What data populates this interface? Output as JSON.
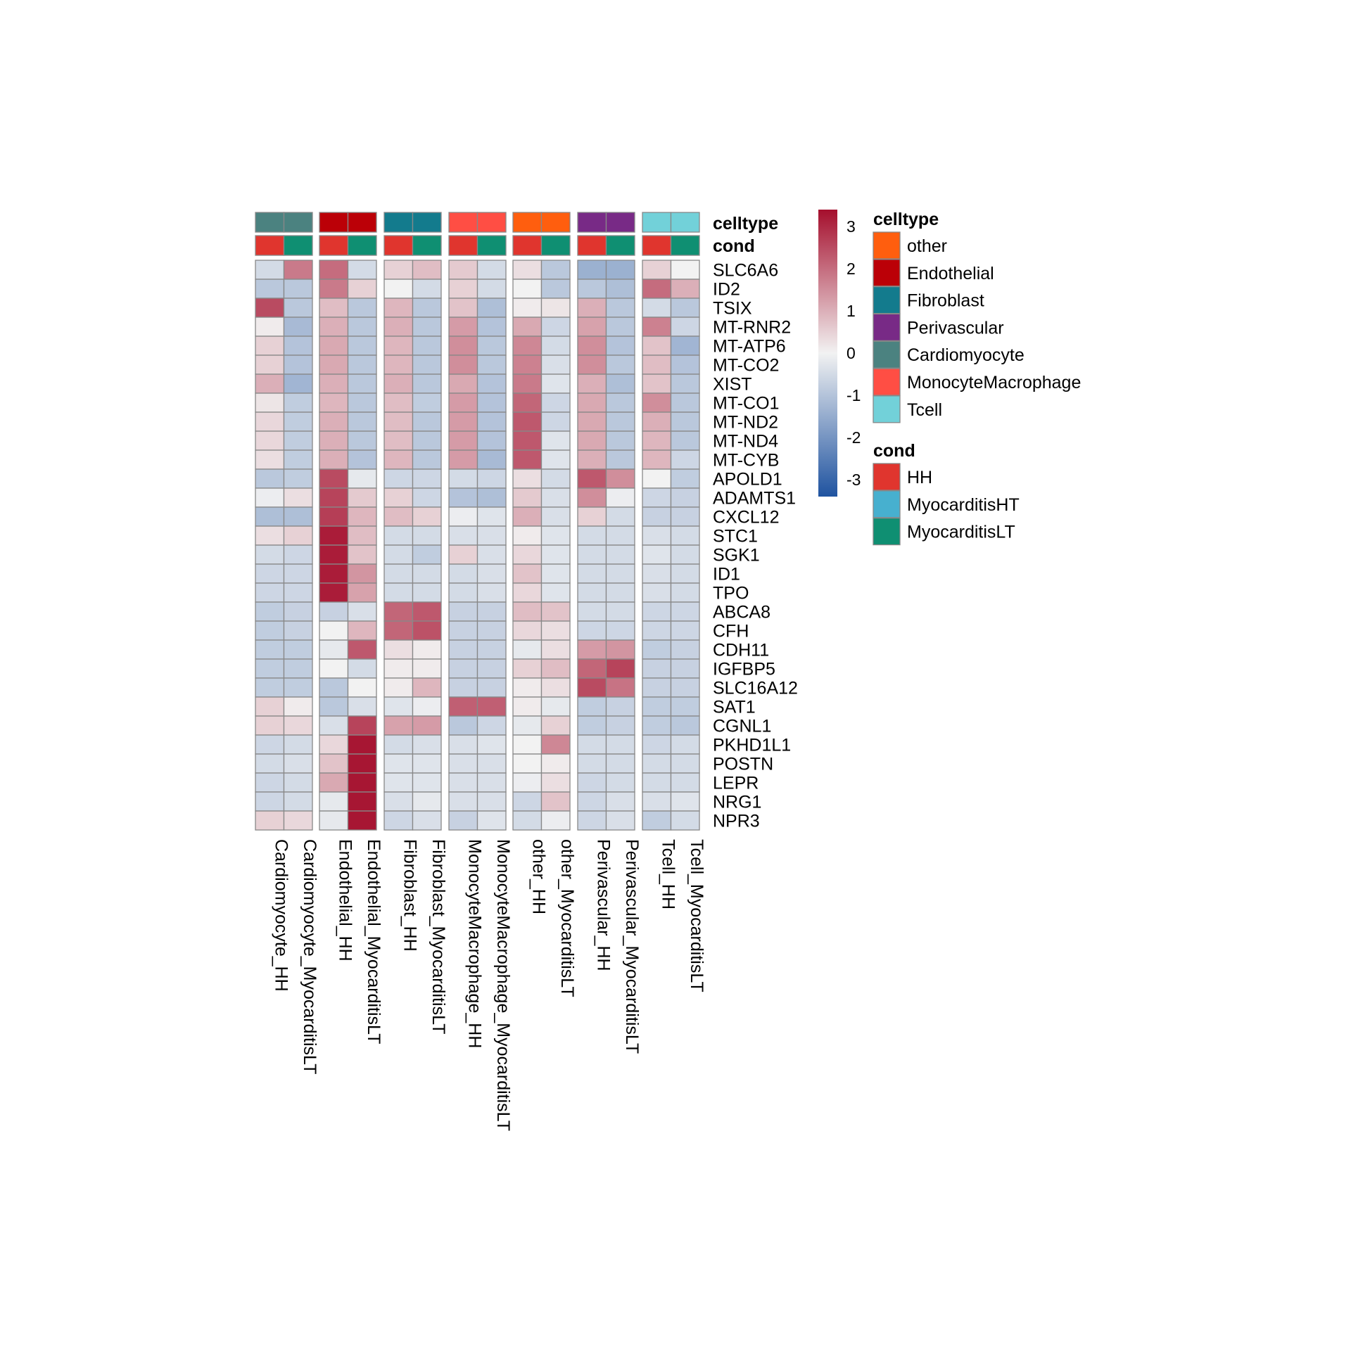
{
  "chart_data": {
    "type": "heatmap",
    "rows": [
      "SLC6A6",
      "ID2",
      "TSIX",
      "MT-RNR2",
      "MT-ATP6",
      "MT-CO2",
      "XIST",
      "MT-CO1",
      "MT-ND2",
      "MT-ND4",
      "MT-CYB",
      "APOLD1",
      "ADAMTS1",
      "CXCL12",
      "STC1",
      "SGK1",
      "ID1",
      "TPO",
      "ABCA8",
      "CFH",
      "CDH11",
      "IGFBP5",
      "SLC16A12",
      "SAT1",
      "CGNL1",
      "PKHD1L1",
      "POSTN",
      "LEPR",
      "NRG1",
      "NPR3"
    ],
    "columns": [
      {
        "label": "Cardiomyocyte_HH",
        "celltype": "Cardiomyocyte",
        "cond": "HH"
      },
      {
        "label": "Cardiomyocyte_MyocarditisLT",
        "celltype": "Cardiomyocyte",
        "cond": "MyocarditisLT"
      },
      {
        "label": "Endothelial_HH",
        "celltype": "Endothelial",
        "cond": "HH"
      },
      {
        "label": "Endothelial_MyocarditisLT",
        "celltype": "Endothelial",
        "cond": "MyocarditisLT"
      },
      {
        "label": "Fibroblast_HH",
        "celltype": "Fibroblast",
        "cond": "HH"
      },
      {
        "label": "Fibroblast_MyocarditisLT",
        "celltype": "Fibroblast",
        "cond": "MyocarditisLT"
      },
      {
        "label": "MonocyteMacrophage_HH",
        "celltype": "MonocyteMacrophage",
        "cond": "HH"
      },
      {
        "label": "MonocyteMacrophage_MyocarditisLT",
        "celltype": "MonocyteMacrophage",
        "cond": "MyocarditisLT"
      },
      {
        "label": "other_HH",
        "celltype": "other",
        "cond": "HH"
      },
      {
        "label": "other_MyocarditisLT",
        "celltype": "other",
        "cond": "MyocarditisLT"
      },
      {
        "label": "Perivascular_HH",
        "celltype": "Perivascular",
        "cond": "HH"
      },
      {
        "label": "Perivascular_MyocarditisLT",
        "celltype": "Perivascular",
        "cond": "MyocarditisLT"
      },
      {
        "label": "Tcell_HH",
        "celltype": "Tcell",
        "cond": "HH"
      },
      {
        "label": "Tcell_MyocarditisLT",
        "celltype": "Tcell",
        "cond": "MyocarditisLT"
      }
    ],
    "values": [
      [
        -0.5,
        1.8,
        2.0,
        -0.5,
        0.5,
        0.8,
        0.6,
        -0.5,
        0.3,
        -0.9,
        -1.4,
        -1.4,
        0.5,
        0.0
      ],
      [
        -0.9,
        -0.9,
        1.8,
        0.5,
        0.0,
        -0.5,
        0.5,
        -0.5,
        0.0,
        -0.9,
        -0.9,
        -1.1,
        2.0,
        1.0
      ],
      [
        2.5,
        -0.9,
        0.8,
        -0.9,
        0.9,
        -0.9,
        0.7,
        -1.1,
        0.1,
        0.2,
        1.0,
        -0.9,
        -0.5,
        -0.9
      ],
      [
        0.1,
        -1.2,
        1.0,
        -0.9,
        1.0,
        -0.9,
        1.3,
        -1.0,
        1.1,
        -0.6,
        1.2,
        -0.9,
        1.7,
        -0.6
      ],
      [
        0.5,
        -1.0,
        1.1,
        -0.9,
        0.9,
        -0.9,
        1.5,
        -0.9,
        1.6,
        -0.5,
        1.5,
        -1.0,
        0.7,
        -1.3
      ],
      [
        0.5,
        -1.0,
        1.1,
        -0.9,
        0.9,
        -0.9,
        1.5,
        -0.9,
        1.7,
        -0.4,
        1.5,
        -0.9,
        0.8,
        -1.0
      ],
      [
        1.0,
        -1.3,
        1.0,
        -0.9,
        1.0,
        -0.9,
        1.1,
        -1.0,
        1.8,
        -0.3,
        1.0,
        -1.1,
        0.7,
        -0.9
      ],
      [
        0.2,
        -0.8,
        0.9,
        -0.9,
        0.8,
        -0.8,
        1.3,
        -1.0,
        2.1,
        -0.6,
        1.1,
        -0.9,
        1.5,
        -0.9
      ],
      [
        0.4,
        -0.8,
        1.0,
        -0.9,
        0.8,
        -0.9,
        1.3,
        -1.0,
        2.3,
        -0.6,
        1.1,
        -0.9,
        1.0,
        -0.9
      ],
      [
        0.4,
        -0.8,
        1.0,
        -0.9,
        0.8,
        -0.9,
        1.3,
        -1.0,
        2.3,
        -0.3,
        1.1,
        -0.9,
        0.9,
        -0.9
      ],
      [
        0.3,
        -0.8,
        1.0,
        -1.0,
        0.9,
        -0.9,
        1.3,
        -1.2,
        2.3,
        -0.3,
        1.0,
        -0.9,
        0.9,
        -0.6
      ],
      [
        -0.9,
        -0.8,
        2.5,
        -0.2,
        -0.6,
        -0.6,
        -0.5,
        -0.6,
        0.3,
        -0.5,
        2.3,
        1.5,
        0.0,
        -0.8
      ],
      [
        -0.1,
        0.3,
        2.6,
        0.6,
        0.5,
        -0.6,
        -1.0,
        -1.1,
        0.6,
        -0.4,
        1.5,
        -0.1,
        -0.6,
        -0.7
      ],
      [
        -1.1,
        -1.1,
        2.7,
        0.9,
        0.8,
        0.5,
        -0.1,
        -0.3,
        1.0,
        -0.4,
        0.5,
        -0.5,
        -0.7,
        -0.7
      ],
      [
        0.3,
        0.5,
        3.2,
        0.8,
        -0.5,
        -0.5,
        -0.4,
        -0.4,
        0.1,
        -0.3,
        -0.5,
        -0.5,
        -0.4,
        -0.5
      ],
      [
        -0.5,
        -0.6,
        3.2,
        0.7,
        -0.5,
        -0.8,
        0.5,
        -0.4,
        0.4,
        -0.3,
        -0.5,
        -0.5,
        -0.3,
        -0.5
      ],
      [
        -0.6,
        -0.6,
        3.2,
        1.4,
        -0.5,
        -0.5,
        -0.5,
        -0.4,
        0.7,
        -0.3,
        -0.5,
        -0.5,
        -0.4,
        -0.5
      ],
      [
        -0.6,
        -0.6,
        3.2,
        1.2,
        -0.5,
        -0.5,
        -0.5,
        -0.4,
        0.4,
        -0.3,
        -0.5,
        -0.5,
        -0.4,
        -0.5
      ],
      [
        -0.8,
        -0.7,
        -0.7,
        -0.4,
        2.1,
        2.3,
        -0.7,
        -0.7,
        0.8,
        0.7,
        -0.5,
        -0.5,
        -0.6,
        -0.6
      ],
      [
        -0.8,
        -0.7,
        0.0,
        0.9,
        2.1,
        2.4,
        -0.7,
        -0.7,
        0.4,
        0.3,
        -0.6,
        -0.6,
        -0.6,
        -0.6
      ],
      [
        -0.8,
        -0.8,
        -0.2,
        2.3,
        0.3,
        0.1,
        -0.7,
        -0.7,
        -0.2,
        0.3,
        1.3,
        1.4,
        -0.8,
        -0.7
      ],
      [
        -0.8,
        -0.8,
        0.0,
        -0.5,
        0.1,
        0.1,
        -0.7,
        -0.7,
        0.5,
        0.8,
        2.1,
        2.6,
        -0.7,
        -0.7
      ],
      [
        -0.8,
        -0.8,
        -0.9,
        0.0,
        0.1,
        0.9,
        -0.7,
        -0.7,
        0.1,
        0.3,
        2.5,
        1.9,
        -0.7,
        -0.7
      ],
      [
        0.5,
        0.1,
        -0.9,
        -0.4,
        -0.3,
        -0.1,
        2.2,
        2.2,
        0.1,
        -0.2,
        -0.8,
        -0.7,
        -0.8,
        -0.8
      ],
      [
        0.5,
        0.4,
        -0.4,
        2.6,
        1.2,
        1.3,
        -0.9,
        -0.6,
        -0.2,
        0.5,
        -0.8,
        -0.7,
        -0.8,
        -0.9
      ],
      [
        -0.6,
        -0.5,
        0.4,
        3.3,
        -0.5,
        -0.4,
        -0.4,
        -0.3,
        0.0,
        1.6,
        -0.5,
        -0.5,
        -0.6,
        -0.5
      ],
      [
        -0.5,
        -0.4,
        0.7,
        3.3,
        -0.3,
        -0.3,
        -0.4,
        -0.4,
        0.0,
        0.1,
        -0.5,
        -0.5,
        -0.5,
        -0.5
      ],
      [
        -0.6,
        -0.5,
        1.1,
        3.3,
        -0.3,
        -0.3,
        -0.4,
        -0.4,
        -0.1,
        0.3,
        -0.6,
        -0.5,
        -0.5,
        -0.5
      ],
      [
        -0.6,
        -0.5,
        -0.2,
        3.3,
        -0.4,
        -0.2,
        -0.4,
        -0.4,
        -0.6,
        0.7,
        -0.6,
        -0.4,
        -0.4,
        -0.3
      ],
      [
        0.5,
        0.4,
        -0.2,
        3.3,
        -0.6,
        -0.4,
        -0.7,
        -0.3,
        -0.5,
        -0.1,
        -0.6,
        -0.4,
        -0.8,
        -0.5
      ]
    ],
    "annotation_labels": {
      "celltype": "celltype",
      "cond": "cond"
    },
    "legend": {
      "celltype": {
        "title": "celltype",
        "items": [
          {
            "label": "other",
            "color": "#FF5E0E"
          },
          {
            "label": "Endothelial",
            "color": "#BB0007"
          },
          {
            "label": "Fibroblast",
            "color": "#137B8D"
          },
          {
            "label": "Perivascular",
            "color": "#782A86"
          },
          {
            "label": "Cardiomyocyte",
            "color": "#4B8280"
          },
          {
            "label": "MonocyteMacrophage",
            "color": "#FF4E44"
          },
          {
            "label": "Tcell",
            "color": "#72D1D9"
          }
        ]
      },
      "cond": {
        "title": "cond",
        "items": [
          {
            "label": "HH",
            "color": "#E0352E"
          },
          {
            "label": "MyocarditisHT",
            "color": "#47B0CF"
          },
          {
            "label": "MyocarditisLT",
            "color": "#0F8F72"
          }
        ]
      }
    },
    "color_scale": {
      "min": -3.4,
      "max": 3.4,
      "ticks": [
        "3",
        "2",
        "1",
        "0",
        "-1",
        "-2",
        "-3"
      ],
      "colors": {
        "low": "#1F53A0",
        "mid": "#F2F2F2",
        "high": "#A50F2D"
      }
    }
  }
}
